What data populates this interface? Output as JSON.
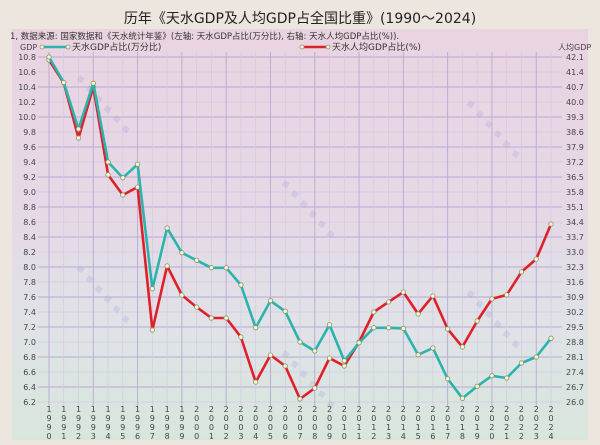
{
  "title": "历年《天水GDP及人均GDP占全国比重》(1990～2024)",
  "note": "1, 数据来源: 国家数据和《天水统计年鉴》(左轴: 天水GDP占比(万分比), 右轴: 天水人均GDP占比(%)).",
  "chart_data": {
    "type": "line",
    "title": "历年《天水GDP及人均GDP占全国比重》(1990～2024)",
    "subtitle": "1, 数据来源: 国家数据和《天水统计年鉴》(左轴: 天水GDP占比(万分比), 右轴: 天水人均GDP占比(%)).",
    "xlabel": "",
    "ylabel_left": "GDP",
    "ylabel_right": "人均GDP",
    "ylim_left": [
      6.2,
      10.8
    ],
    "ylim_right": [
      26.0,
      42.1
    ],
    "yticks_left": [
      "10.8",
      "10.6",
      "10.4",
      "10.2",
      "10.0",
      "9.8",
      "9.6",
      "9.4",
      "9.2",
      "9.0",
      "8.8",
      "8.6",
      "8.4",
      "8.2",
      "8.0",
      "7.8",
      "7.6",
      "7.4",
      "7.2",
      "7.0",
      "6.8",
      "6.6",
      "6.4",
      "6.2"
    ],
    "yticks_right": [
      "42.1",
      "41.4",
      "40.7",
      "40.0",
      "39.3",
      "38.6",
      "37.9",
      "37.2",
      "36.5",
      "35.8",
      "35.1",
      "34.4",
      "33.7",
      "33.0",
      "32.3",
      "31.6",
      "30.9",
      "30.2",
      "29.5",
      "28.8",
      "28.1",
      "27.4",
      "26.7",
      "26.0"
    ],
    "grid": true,
    "legend_position": "top",
    "x": [
      1990,
      1991,
      1992,
      1993,
      1994,
      1995,
      1996,
      1997,
      1998,
      1999,
      2000,
      2001,
      2002,
      2003,
      2004,
      2005,
      2006,
      2007,
      2008,
      2009,
      2010,
      2011,
      2012,
      2013,
      2014,
      2015,
      2016,
      2017,
      2018,
      2019,
      2020,
      2021,
      2022,
      2023,
      2024
    ],
    "series": [
      {
        "name": "天水GDP占比(万分比)",
        "axis": "left",
        "color": "#2bb3ad",
        "values": [
          10.8,
          10.46,
          9.84,
          10.45,
          9.4,
          9.19,
          9.37,
          7.71,
          8.52,
          8.19,
          8.09,
          7.99,
          7.99,
          7.76,
          7.19,
          7.55,
          7.41,
          7.0,
          6.88,
          7.23,
          6.75,
          6.99,
          7.19,
          7.19,
          7.18,
          6.83,
          6.92,
          6.51,
          6.25,
          6.41,
          6.55,
          6.52,
          6.72,
          6.8,
          7.05
        ]
      },
      {
        "name": "天水人均GDP占比(%)",
        "axis": "right",
        "color": "#e02028",
        "values": [
          41.96,
          40.89,
          38.32,
          40.7,
          36.6,
          35.66,
          36.03,
          29.36,
          32.35,
          30.99,
          30.43,
          29.92,
          29.92,
          29.03,
          26.93,
          28.19,
          27.68,
          26.14,
          26.65,
          28.05,
          27.68,
          28.8,
          30.2,
          30.67,
          31.13,
          30.11,
          30.95,
          29.41,
          28.57,
          29.78,
          30.81,
          31.0,
          32.07,
          32.67,
          34.3
        ]
      }
    ]
  }
}
